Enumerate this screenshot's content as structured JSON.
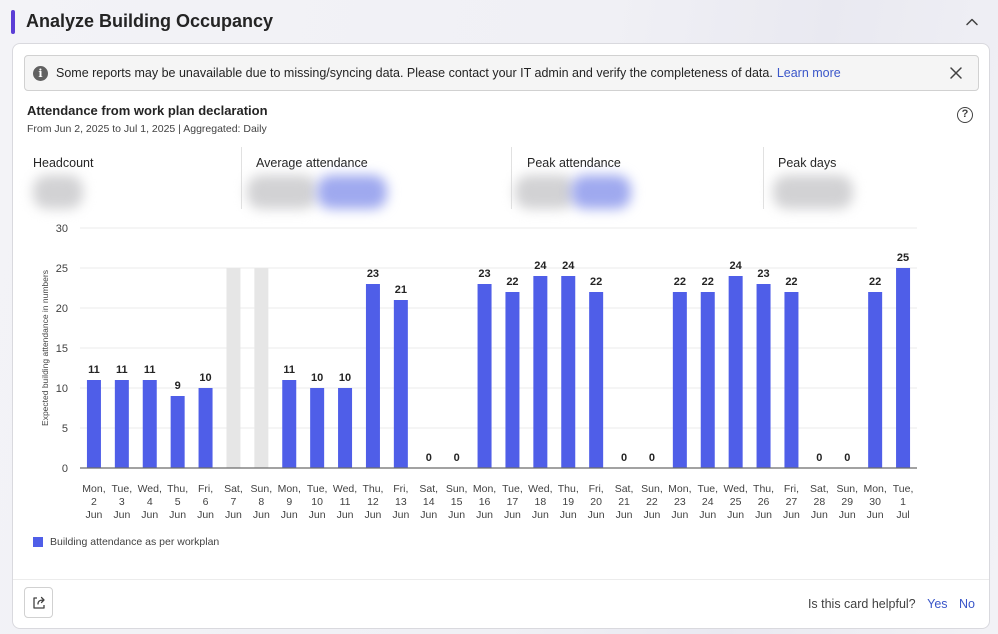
{
  "header": {
    "title": "Analyze Building Occupancy",
    "accent_color": "#5b3ed6",
    "collapse_icon": "chevron-up-icon"
  },
  "banner": {
    "icon": "info-icon",
    "message": "Some reports may be unavailable due to missing/syncing data. Please contact your IT admin and verify the completeness of data.",
    "link_label": "Learn more",
    "close_icon": "close-icon"
  },
  "chart_header": {
    "title": "Attendance from work plan declaration",
    "subtitle": "From Jun 2, 2025 to Jul 1, 2025 | Aggregated: Daily",
    "help_icon": "question-circle-icon"
  },
  "metrics": [
    {
      "label": "Headcount"
    },
    {
      "label": "Average attendance"
    },
    {
      "label": "Peak attendance"
    },
    {
      "label": "Peak days"
    }
  ],
  "chart_data": {
    "type": "bar",
    "title": "",
    "xlabel": "",
    "ylabel": "Expected building attendance in numbers",
    "ylim": [
      0,
      30
    ],
    "yticks": [
      0,
      5,
      10,
      15,
      20,
      25,
      30
    ],
    "grid": true,
    "bar_color": "#4f5ee8",
    "weekend_color": "#e6e6e6",
    "categories": [
      [
        "Mon,",
        "2",
        "Jun"
      ],
      [
        "Tue,",
        "3",
        "Jun"
      ],
      [
        "Wed,",
        "4",
        "Jun"
      ],
      [
        "Thu,",
        "5",
        "Jun"
      ],
      [
        "Fri,",
        "6",
        "Jun"
      ],
      [
        "Sat,",
        "7",
        "Jun"
      ],
      [
        "Sun,",
        "8",
        "Jun"
      ],
      [
        "Mon,",
        "9",
        "Jun"
      ],
      [
        "Tue,",
        "10",
        "Jun"
      ],
      [
        "Wed,",
        "11",
        "Jun"
      ],
      [
        "Thu,",
        "12",
        "Jun"
      ],
      [
        "Fri,",
        "13",
        "Jun"
      ],
      [
        "Sat,",
        "14",
        "Jun"
      ],
      [
        "Sun,",
        "15",
        "Jun"
      ],
      [
        "Mon,",
        "16",
        "Jun"
      ],
      [
        "Tue,",
        "17",
        "Jun"
      ],
      [
        "Wed,",
        "18",
        "Jun"
      ],
      [
        "Thu,",
        "19",
        "Jun"
      ],
      [
        "Fri,",
        "20",
        "Jun"
      ],
      [
        "Sat,",
        "21",
        "Jun"
      ],
      [
        "Sun,",
        "22",
        "Jun"
      ],
      [
        "Mon,",
        "23",
        "Jun"
      ],
      [
        "Tue,",
        "24",
        "Jun"
      ],
      [
        "Wed,",
        "25",
        "Jun"
      ],
      [
        "Thu,",
        "26",
        "Jun"
      ],
      [
        "Fri,",
        "27",
        "Jun"
      ],
      [
        "Sat,",
        "28",
        "Jun"
      ],
      [
        "Sun,",
        "29",
        "Jun"
      ],
      [
        "Mon,",
        "30",
        "Jun"
      ],
      [
        "Tue,",
        "1",
        "Jul"
      ]
    ],
    "series": [
      {
        "name": "Building attendance as per workplan",
        "values": [
          11,
          11,
          11,
          9,
          10,
          null,
          null,
          11,
          10,
          10,
          23,
          21,
          0,
          0,
          23,
          22,
          24,
          24,
          22,
          0,
          0,
          22,
          22,
          24,
          23,
          22,
          0,
          0,
          22,
          25
        ]
      }
    ],
    "weekend_flags": [
      false,
      false,
      false,
      false,
      false,
      true,
      true,
      false,
      false,
      false,
      false,
      false,
      false,
      false,
      false,
      false,
      false,
      false,
      false,
      false,
      false,
      false,
      false,
      false,
      false,
      false,
      false,
      false,
      false,
      false
    ],
    "legend": "bottom-left"
  },
  "footer": {
    "share_icon": "share-icon",
    "question": "Is this card helpful?",
    "yes_label": "Yes",
    "no_label": "No"
  }
}
